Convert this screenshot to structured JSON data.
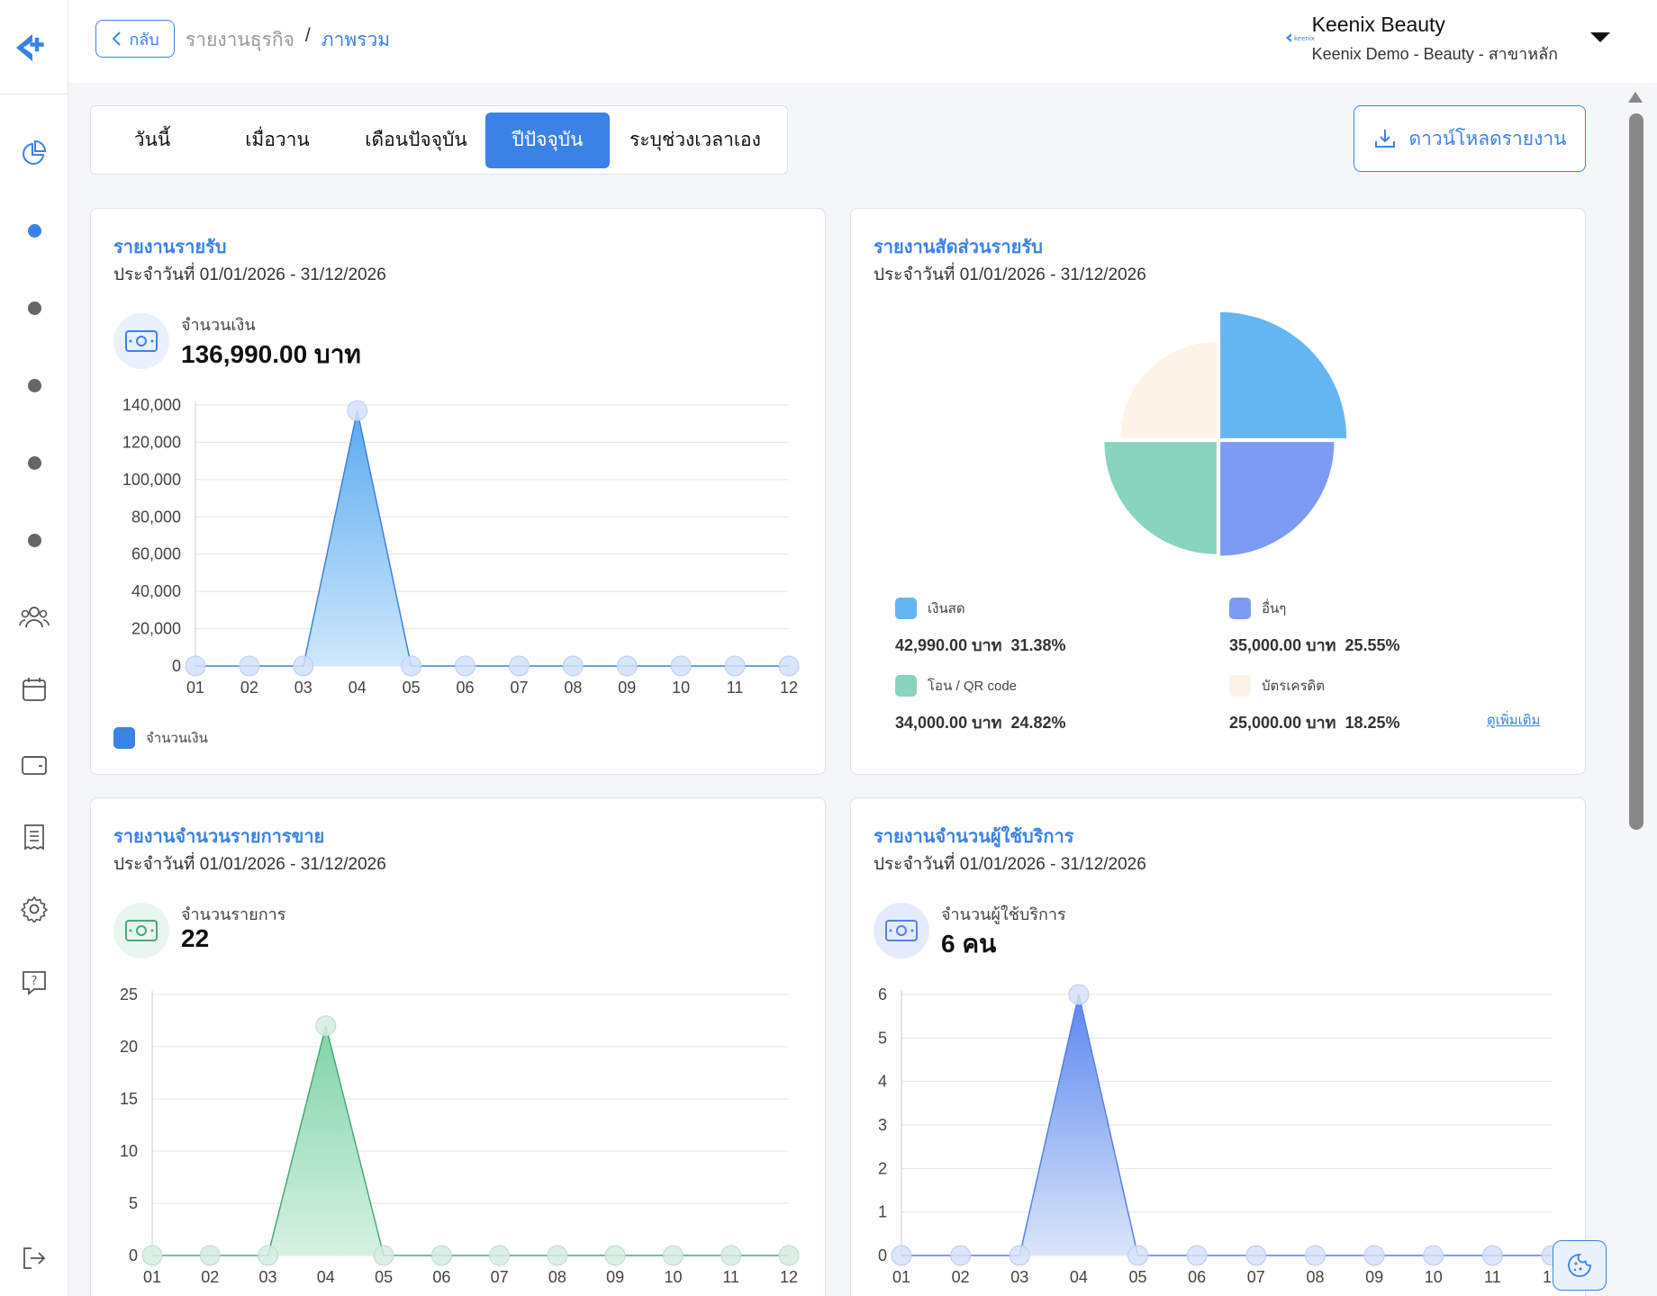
{
  "header": {
    "back_label": "กลับ",
    "breadcrumb": [
      "รายงานธุรกิจ",
      "ภาพรวม"
    ],
    "business_name": "Keenix Beauty",
    "business_sub": "Keenix Demo - Beauty - สาขาหลัก",
    "logo_text": "keenix"
  },
  "tabs": [
    "วันนี้",
    "เมื่อวาน",
    "เดือนปัจจุบัน",
    "ปีปัจจุบัน",
    "ระบุช่วงเวลาเอง"
  ],
  "active_tab": "ปีปัจจุบัน",
  "download_label": "ดาวน์โหลดรายงาน",
  "colors": {
    "accent": "#3b82e6",
    "green": "#6cc79b",
    "blue2": "#7b9cf2",
    "sky": "#63b6f1",
    "cream": "#fdf3e6"
  },
  "cards": {
    "income": {
      "title": "รายงานรายรับ",
      "date": "ประจำวันที่ 01/01/2026 - 31/12/2026",
      "kpi_label": "จำนวนเงิน",
      "kpi_value": "136,990.00 บาท",
      "legend": "จำนวนเงิน"
    },
    "share": {
      "title": "รายงานสัดส่วนรายรับ",
      "date": "ประจำวันที่ 01/01/2026 - 31/12/2026",
      "more": "ดูเพิ่มเติม"
    },
    "sales": {
      "title": "รายงานจำนวนรายการขาย",
      "date": "ประจำวันที่ 01/01/2026 - 31/12/2026",
      "kpi_label": "จำนวนรายการ",
      "kpi_value": "22"
    },
    "customers": {
      "title": "รายงานจำนวนผู้ใช้บริการ",
      "date": "ประจำวันที่ 01/01/2026 - 31/12/2026",
      "kpi_label": "จำนวนผู้ใช้บริการ",
      "kpi_value": "6 คน"
    }
  },
  "chart_data": [
    {
      "type": "area",
      "categories": [
        "01",
        "02",
        "03",
        "04",
        "05",
        "06",
        "07",
        "08",
        "09",
        "10",
        "11",
        "12"
      ],
      "series": [
        {
          "name": "จำนวนเงิน",
          "values": [
            0,
            0,
            0,
            136990,
            0,
            0,
            0,
            0,
            0,
            0,
            0,
            0
          ]
        }
      ],
      "ylim": [
        0,
        140000
      ],
      "yticks": [
        "0",
        "20,000",
        "40,000",
        "60,000",
        "80,000",
        "100,000",
        "120,000",
        "140,000"
      ]
    },
    {
      "type": "pie",
      "slices": [
        {
          "label": "เงินสด",
          "value": 42990,
          "value_text": "42,990.00 บาท",
          "pct": "31.38%",
          "color": "#63b6f1"
        },
        {
          "label": "อื่นๆ",
          "value": 35000,
          "value_text": "35,000.00 บาท",
          "pct": "25.55%",
          "color": "#7b9cf2"
        },
        {
          "label": "โอน / QR code",
          "value": 34000,
          "value_text": "34,000.00 บาท",
          "pct": "24.82%",
          "color": "#88d4bd"
        },
        {
          "label": "บัตรเครดิต",
          "value": 25000,
          "value_text": "25,000.00 บาท",
          "pct": "18.25%",
          "color": "#fdf3e6"
        }
      ]
    },
    {
      "type": "area",
      "categories": [
        "01",
        "02",
        "03",
        "04",
        "05",
        "06",
        "07",
        "08",
        "09",
        "10",
        "11",
        "12"
      ],
      "series": [
        {
          "values": [
            0,
            0,
            0,
            22,
            0,
            0,
            0,
            0,
            0,
            0,
            0,
            0
          ]
        }
      ],
      "ylim": [
        0,
        25
      ],
      "yticks": [
        "0",
        "5",
        "10",
        "15",
        "20",
        "25"
      ]
    },
    {
      "type": "area",
      "categories": [
        "01",
        "02",
        "03",
        "04",
        "05",
        "06",
        "07",
        "08",
        "09",
        "10",
        "11",
        "12"
      ],
      "series": [
        {
          "values": [
            0,
            0,
            0,
            6,
            0,
            0,
            0,
            0,
            0,
            0,
            0,
            0
          ]
        }
      ],
      "ylim": [
        0,
        6
      ],
      "yticks": [
        "0",
        "1",
        "2",
        "3",
        "4",
        "5",
        "6"
      ]
    }
  ]
}
